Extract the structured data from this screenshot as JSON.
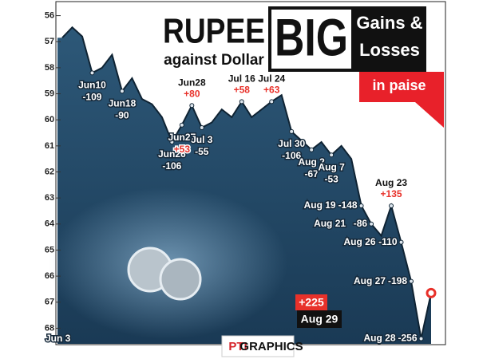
{
  "chart_data": {
    "type": "area",
    "title": "RUPEE",
    "subtitle": "against Dollar",
    "banner": {
      "big": "BIG",
      "line1": "Gains &",
      "line2": "Losses",
      "unit": "in paise"
    },
    "source": {
      "logo": "PTI",
      "text": "GRAPHICS"
    },
    "color": "#234d6c",
    "categories": [
      "Jun 3",
      null,
      null,
      "Jun10",
      null,
      null,
      "Jun18",
      null,
      null,
      null,
      null,
      "Jun26",
      "Jun27",
      "Jun28",
      "Jul 3",
      null,
      null,
      null,
      "Jul 16",
      null,
      null,
      "Jul 24",
      null,
      "Jul 30",
      null,
      "Aug 2",
      null,
      "Aug 7",
      null,
      null,
      "Aug 19",
      "Aug 21",
      null,
      "Aug 23",
      "Aug 26",
      "Aug 27",
      "Aug 28",
      "Aug 29"
    ],
    "values": [
      56.85,
      56.45,
      56.8,
      58.2,
      58.0,
      57.5,
      58.9,
      58.4,
      59.2,
      59.4,
      59.9,
      60.85,
      60.2,
      59.45,
      60.3,
      60.1,
      59.6,
      59.9,
      59.3,
      59.9,
      59.6,
      59.3,
      59.05,
      60.45,
      60.8,
      61.15,
      60.85,
      61.35,
      61.0,
      61.5,
      63.3,
      64.0,
      64.45,
      63.3,
      64.7,
      66.2,
      68.4,
      66.65
    ],
    "changes": [
      null,
      null,
      null,
      -109,
      null,
      null,
      -90,
      null,
      null,
      null,
      null,
      -106,
      53,
      80,
      -55,
      null,
      null,
      null,
      58,
      null,
      null,
      63,
      null,
      -106,
      null,
      -67,
      null,
      -53,
      null,
      null,
      -148,
      -86,
      null,
      135,
      -110,
      -198,
      -256,
      225
    ],
    "change_labels": [
      null,
      null,
      null,
      "-109",
      null,
      null,
      "-90",
      null,
      null,
      null,
      null,
      "-106",
      "+53",
      "+80",
      "-55",
      null,
      null,
      null,
      "+58",
      null,
      null,
      "+63",
      null,
      "-106",
      null,
      "-67",
      null,
      "-53",
      null,
      null,
      "-148",
      "-86",
      null,
      "+135",
      "-110",
      "-198",
      "-256",
      "+225"
    ],
    "ylim": [
      55.4,
      68.6
    ],
    "yticks": [
      56,
      57,
      58,
      59,
      60,
      61,
      62,
      63,
      64,
      65,
      66,
      67,
      68
    ],
    "inverted": true
  }
}
